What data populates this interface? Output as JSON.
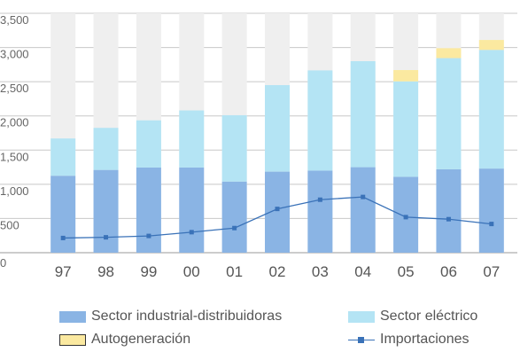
{
  "chart_data": {
    "type": "bar",
    "stacked": true,
    "categories": [
      "97",
      "98",
      "99",
      "00",
      "01",
      "02",
      "03",
      "04",
      "05",
      "06",
      "07"
    ],
    "ylim": [
      0,
      3500
    ],
    "yticks": [
      "0",
      "500",
      "1,000",
      "1,500",
      "2,000",
      "2,500",
      "3,000",
      "3,500"
    ],
    "ytick_values": [
      0,
      500,
      1000,
      1500,
      2000,
      2500,
      3000,
      3500
    ],
    "grid": true,
    "title": "",
    "xlabel": "",
    "ylabel": "",
    "series": [
      {
        "name": "Sector industrial-distribuidoras",
        "kind": "bar",
        "color": "#8ab4e4",
        "values": [
          1125,
          1210,
          1245,
          1245,
          1040,
          1185,
          1200,
          1250,
          1110,
          1220,
          1230
        ]
      },
      {
        "name": "Sector eléctrico",
        "kind": "bar",
        "color": "#b4e4f4",
        "values": [
          545,
          615,
          690,
          835,
          970,
          1265,
          1465,
          1550,
          1395,
          1625,
          1735
        ]
      },
      {
        "name": "Autogeneración",
        "kind": "bar",
        "color": "#fbe9a0",
        "values": [
          0,
          0,
          0,
          0,
          0,
          0,
          0,
          0,
          165,
          145,
          145
        ]
      },
      {
        "name": "Importaciones",
        "kind": "line",
        "color": "#3a72b8",
        "values": [
          215,
          225,
          245,
          300,
          360,
          640,
          775,
          815,
          520,
          490,
          420
        ]
      }
    ],
    "background_bar": {
      "color": "#efefef",
      "value": 3500
    },
    "legend": {
      "placement": "bottom"
    }
  }
}
